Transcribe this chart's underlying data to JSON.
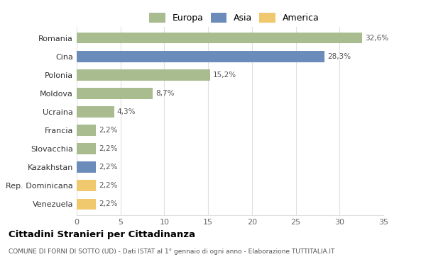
{
  "categories": [
    "Venezuela",
    "Rep. Dominicana",
    "Kazakhstan",
    "Slovacchia",
    "Francia",
    "Ucraina",
    "Moldova",
    "Polonia",
    "Cina",
    "Romania"
  ],
  "values": [
    2.2,
    2.2,
    2.2,
    2.2,
    2.2,
    4.3,
    8.7,
    15.2,
    28.3,
    32.6
  ],
  "labels": [
    "2,2%",
    "2,2%",
    "2,2%",
    "2,2%",
    "2,2%",
    "4,3%",
    "8,7%",
    "15,2%",
    "28,3%",
    "32,6%"
  ],
  "colors": [
    "#f0c96e",
    "#f0c96e",
    "#6b8cba",
    "#a8bc8f",
    "#a8bc8f",
    "#a8bc8f",
    "#a8bc8f",
    "#a8bc8f",
    "#6b8cba",
    "#a8bc8f"
  ],
  "legend_labels": [
    "Europa",
    "Asia",
    "America"
  ],
  "legend_colors": [
    "#a8bc8f",
    "#6b8cba",
    "#f0c96e"
  ],
  "title": "Cittadini Stranieri per Cittadinanza",
  "subtitle": "COMUNE DI FORNI DI SOTTO (UD) - Dati ISTAT al 1° gennaio di ogni anno - Elaborazione TUTTITALIA.IT",
  "xlim": [
    0,
    35
  ],
  "xticks": [
    0,
    5,
    10,
    15,
    20,
    25,
    30,
    35
  ],
  "bg_color": "#ffffff",
  "grid_color": "#e0e0e0",
  "bar_height": 0.6
}
